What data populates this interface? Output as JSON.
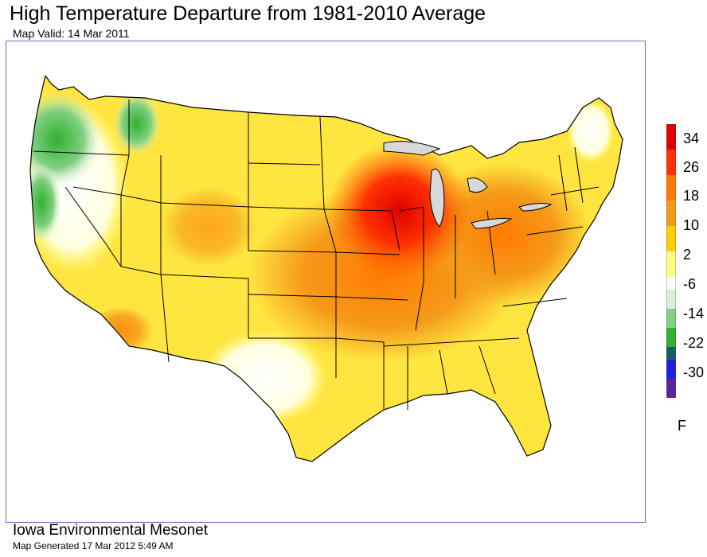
{
  "header": {
    "title": "High Temperature Departure from 1981-2010 Average",
    "subtitle": "Map Valid:  14 Mar 2011"
  },
  "legend": {
    "labels": [
      "34",
      "26",
      "18",
      "10",
      "2",
      "-6",
      "-14",
      "-22",
      "-30"
    ],
    "unit": "F",
    "colors": [
      "#e00000",
      "#ff6000",
      "#f59a1a",
      "#ffd000",
      "#ffff80",
      "#ffffff",
      "#d8f0d8",
      "#30b030",
      "#106060",
      "#2020e0",
      "#6020a0"
    ]
  },
  "footer": {
    "source": "Iowa Environmental Mesonet",
    "generated": "Map Generated 17 Mar 2012 5:49 AM"
  }
}
